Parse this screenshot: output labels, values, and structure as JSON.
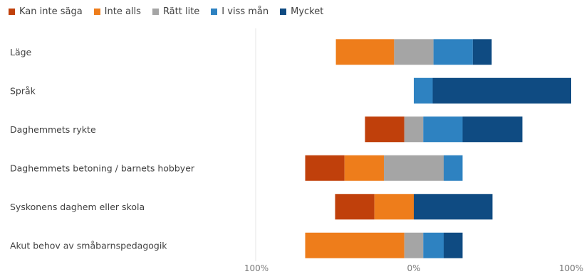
{
  "chart_data": {
    "type": "bar",
    "orientation": "horizontal",
    "stacked": "diverging",
    "legend_position": "top-left",
    "grid": false,
    "xlim": [
      -100,
      100
    ],
    "xticks": [
      {
        "value": -100,
        "label": "100%"
      },
      {
        "value": 0,
        "label": "0%"
      },
      {
        "value": 100,
        "label": "100%"
      }
    ],
    "categories": [
      "Läge",
      "Språk",
      "Daghemmets rykte",
      "Daghemmets betoning / barnets hobbyer",
      "Syskonens daghem eller skola",
      "Akut behov av småbarnspedagogik"
    ],
    "series": [
      {
        "name": "Kan inte säga",
        "color": "#c0400b",
        "side": "negative",
        "values": [
          0,
          0,
          25,
          25,
          25,
          0
        ]
      },
      {
        "name": "Inte alls",
        "color": "#ee7d1b",
        "side": "negative",
        "values": [
          37,
          0,
          0,
          25,
          25,
          63
        ]
      },
      {
        "name": "Rätt lite",
        "color": "#a5a5a5",
        "side": "split",
        "values": [
          25,
          0,
          12,
          38,
          0,
          12
        ]
      },
      {
        "name": "I viss mån",
        "color": "#2e82c1",
        "side": "positive",
        "values": [
          25,
          12,
          25,
          12,
          0,
          13
        ]
      },
      {
        "name": "Mycket",
        "color": "#0f4b82",
        "side": "positive",
        "values": [
          12,
          88,
          38,
          0,
          50,
          12
        ]
      }
    ]
  }
}
